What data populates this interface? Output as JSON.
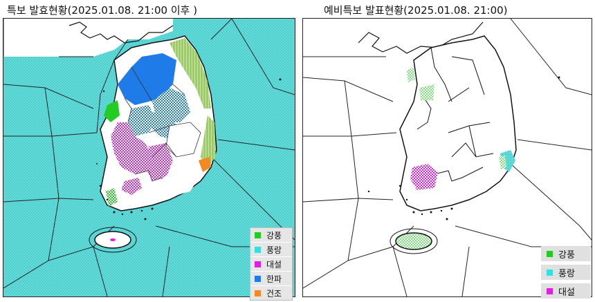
{
  "left_panel": {
    "title": "특보 발효현황(2025.01.08. 21:00 이후 )",
    "legend": [
      {
        "label": "강풍",
        "color": "#22cc22"
      },
      {
        "label": "풍랑",
        "color": "#33e0e0"
      },
      {
        "label": "대설",
        "color": "#e020e0"
      },
      {
        "label": "한파",
        "color": "#1e7be8"
      },
      {
        "label": "건조",
        "color": "#f08a24"
      }
    ]
  },
  "right_panel": {
    "title": "예비특보 발표현황(2025.01.08. 21:00)",
    "legend": [
      {
        "label": "강풍",
        "color": "#22cc22"
      },
      {
        "label": "풍랑",
        "color": "#33e0e0"
      },
      {
        "label": "대설",
        "color": "#e020e0"
      }
    ]
  },
  "colors": {
    "sea_warning": "#5fd8d8",
    "land": "#ffffff",
    "cold_wave": "#1e7be8",
    "snow": "#e020e0",
    "wind": "#22cc22",
    "dry": "#f08a24"
  }
}
